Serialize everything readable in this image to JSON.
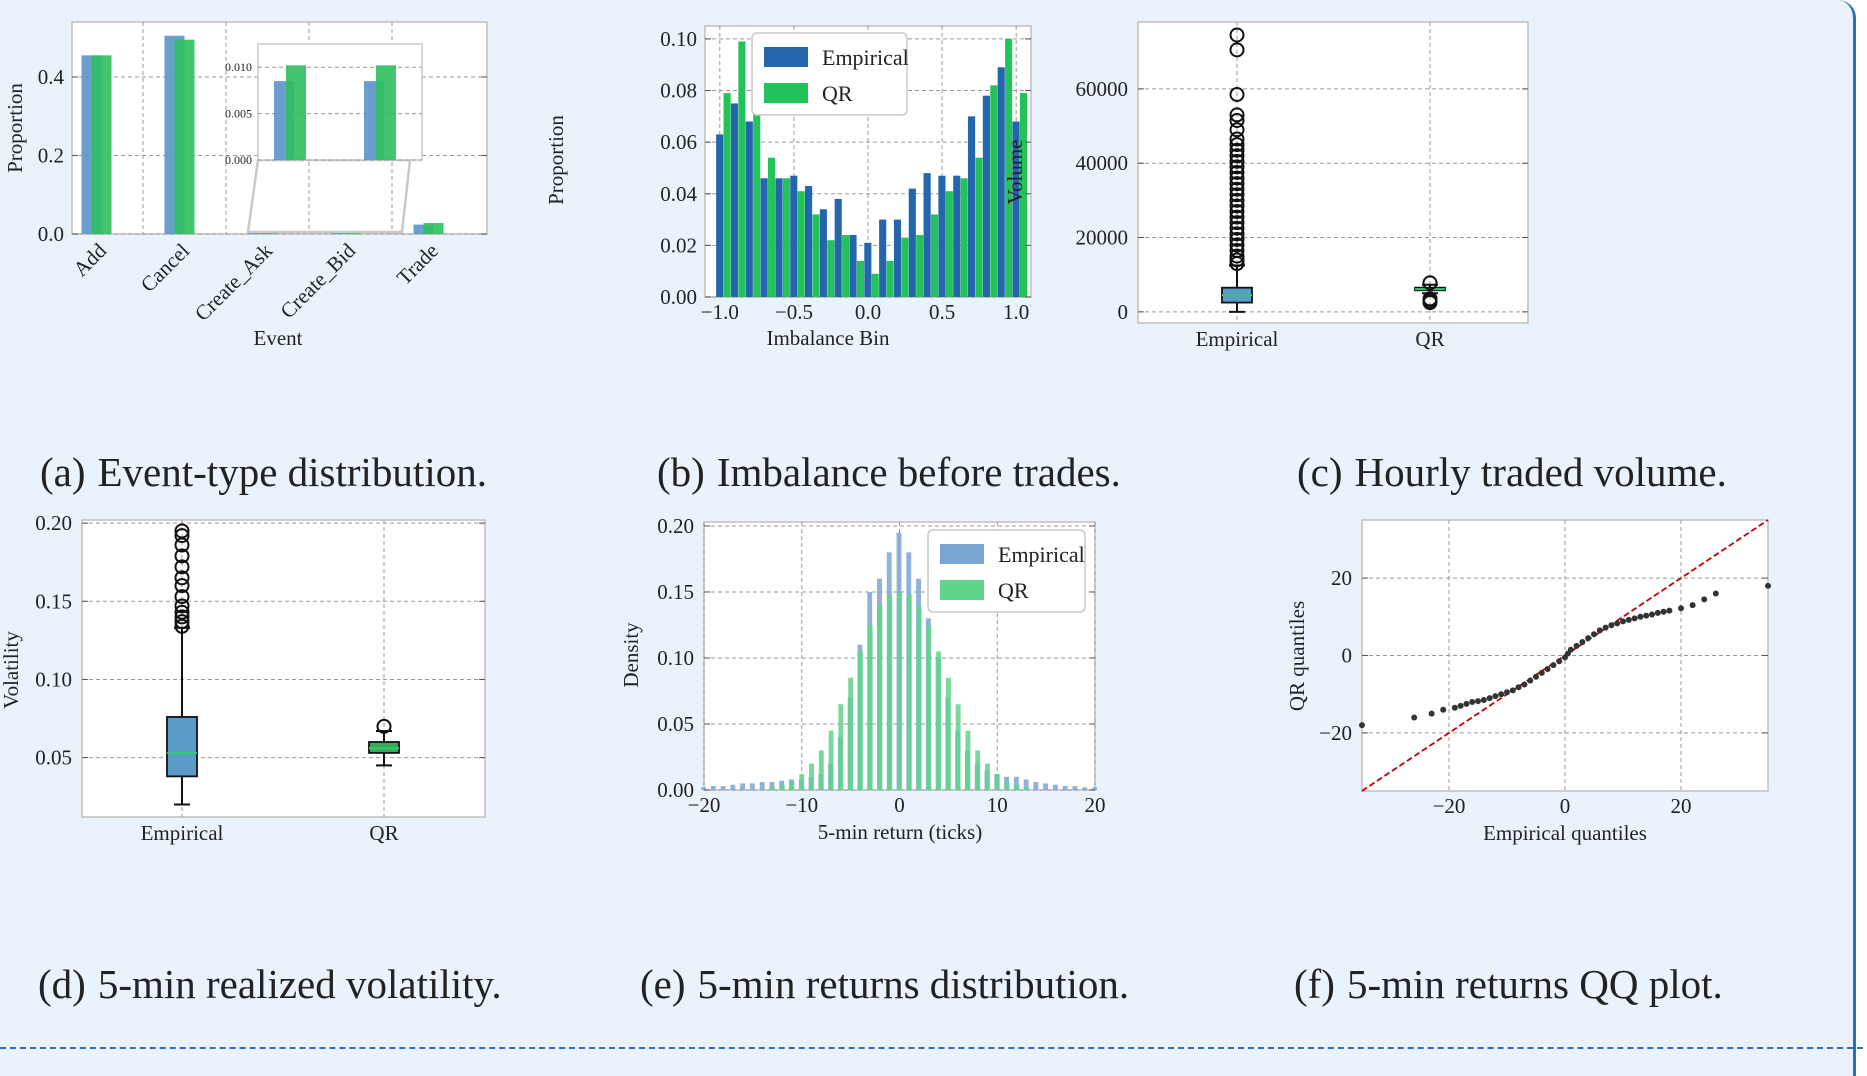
{
  "chart_data": [
    {
      "id": "a",
      "type": "bar",
      "caption_letter": "(a)",
      "caption": "Event-type distribution.",
      "categories": [
        "Add",
        "Cancel",
        "Create_Ask",
        "Create_Bid",
        "Trade"
      ],
      "series": [
        {
          "name": "Empirical",
          "values": [
            0.455,
            0.505,
            0.004,
            0.004,
            0.024
          ],
          "color": "#5b93c8"
        },
        {
          "name": "QR",
          "values": [
            0.455,
            0.495,
            0.005,
            0.005,
            0.028
          ],
          "color": "#2fbf5f"
        }
      ],
      "xlabel": "Event",
      "ylabel": "Proportion",
      "ylim": [
        0,
        0.54
      ],
      "yticks": [
        0.0,
        0.2,
        0.4
      ],
      "ytick_labels": [
        "0.0",
        "0.2",
        "0.4"
      ],
      "grid": true,
      "inset": {
        "categories": [
          "Create_Ask",
          "Create_Bid"
        ],
        "series": [
          {
            "name": "Empirical",
            "values": [
              0.0085,
              0.0085
            ]
          },
          {
            "name": "QR",
            "values": [
              0.0102,
              0.0102
            ]
          }
        ],
        "ylim": [
          0,
          0.0125
        ],
        "yticks": [
          0.0,
          0.005,
          0.01
        ],
        "ytick_labels": [
          "0.000",
          "0.005",
          "0.010"
        ]
      }
    },
    {
      "id": "b",
      "type": "bar",
      "caption_letter": "(b)",
      "caption": "Imbalance before trades.",
      "xlabel": "Imbalance Bin",
      "ylabel": "Proportion",
      "xlim": [
        -1.1,
        1.1
      ],
      "ylim": [
        0,
        0.105
      ],
      "xticks": [
        -1.0,
        -0.5,
        0.0,
        0.5,
        1.0
      ],
      "xtick_labels": [
        "−1.0",
        "−0.5",
        "0.0",
        "0.5",
        "1.0"
      ],
      "yticks": [
        0.0,
        0.02,
        0.04,
        0.06,
        0.08,
        0.1
      ],
      "ytick_labels": [
        "0.00",
        "0.02",
        "0.04",
        "0.06",
        "0.08",
        "0.10"
      ],
      "legend": "upper-center",
      "grid": true,
      "bin_centers": [
        -0.975,
        -0.875,
        -0.775,
        -0.675,
        -0.575,
        -0.475,
        -0.375,
        -0.275,
        -0.175,
        -0.075,
        0.025,
        0.125,
        0.225,
        0.325,
        0.425,
        0.525,
        0.625,
        0.725,
        0.825,
        0.925,
        1.025
      ],
      "series": [
        {
          "name": "Empirical",
          "color": "#2466ad",
          "values": [
            0.063,
            0.075,
            0.068,
            0.046,
            0.046,
            0.047,
            0.043,
            0.034,
            0.038,
            0.024,
            0.021,
            0.03,
            0.03,
            0.042,
            0.048,
            0.047,
            0.047,
            0.07,
            0.078,
            0.089,
            0.068
          ]
        },
        {
          "name": "QR",
          "color": "#24c25a",
          "values": [
            0.079,
            0.099,
            0.082,
            0.054,
            0.046,
            0.041,
            0.032,
            0.022,
            0.024,
            0.014,
            0.009,
            0.014,
            0.023,
            0.024,
            0.032,
            0.041,
            0.046,
            0.054,
            0.082,
            0.1,
            0.079
          ]
        }
      ]
    },
    {
      "id": "c",
      "type": "boxplot",
      "caption_letter": "(c)",
      "caption": "Hourly traded volume.",
      "categories": [
        "Empirical",
        "QR"
      ],
      "ylabel": "Volume",
      "ylim": [
        -3000,
        78000
      ],
      "yticks": [
        0,
        20000,
        40000,
        60000
      ],
      "ytick_labels": [
        "0",
        "20000",
        "40000",
        "60000"
      ],
      "grid": true,
      "boxes": [
        {
          "name": "Empirical",
          "whisker_low": 0,
          "q1": 2500,
          "median": 4500,
          "q3": 6500,
          "whisker_high": 12500,
          "color": "#5b9bc8",
          "outliers": [
            13000,
            14000,
            15000,
            16500,
            18000,
            19500,
            21000,
            22500,
            24000,
            25500,
            27000,
            28500,
            30000,
            31500,
            33000,
            34500,
            36000,
            37500,
            39000,
            40500,
            42000,
            43500,
            45000,
            46500,
            49000,
            51500,
            53000,
            58500,
            70500,
            74500
          ]
        },
        {
          "name": "QR",
          "whisker_low": 5000,
          "q1": 5800,
          "median": 6100,
          "q3": 6500,
          "whisker_high": 7300,
          "color": "#3aa65a",
          "outliers": [
            2500,
            3000,
            3500,
            7800
          ]
        }
      ]
    },
    {
      "id": "d",
      "type": "boxplot",
      "caption_letter": "(d)",
      "caption": "5-min realized volatility.",
      "categories": [
        "Empirical",
        "QR"
      ],
      "ylabel": "Volatility",
      "ylim": [
        0.012,
        0.202
      ],
      "yticks": [
        0.05,
        0.1,
        0.15,
        0.2
      ],
      "ytick_labels": [
        "0.05",
        "0.10",
        "0.15",
        "0.20"
      ],
      "grid": true,
      "boxes": [
        {
          "name": "Empirical",
          "whisker_low": 0.02,
          "q1": 0.038,
          "median": 0.053,
          "q3": 0.076,
          "whisker_high": 0.133,
          "color": "#5b9bc8",
          "outliers": [
            0.134,
            0.137,
            0.14,
            0.143,
            0.147,
            0.153,
            0.16,
            0.165,
            0.172,
            0.179,
            0.186,
            0.192,
            0.195
          ]
        },
        {
          "name": "QR",
          "whisker_low": 0.045,
          "q1": 0.053,
          "median": 0.056,
          "q3": 0.06,
          "whisker_high": 0.067,
          "color": "#3aa65a",
          "outliers": [
            0.07
          ]
        }
      ]
    },
    {
      "id": "e",
      "type": "bar",
      "caption_letter": "(e)",
      "caption": "5-min returns distribution.",
      "xlabel": "5-min return (ticks)",
      "ylabel": "Density",
      "xlim": [
        -20,
        20
      ],
      "ylim": [
        0,
        0.203
      ],
      "xticks": [
        -20,
        -10,
        0,
        10,
        20
      ],
      "xtick_labels": [
        "−20",
        "−10",
        "0",
        "10",
        "20"
      ],
      "yticks": [
        0.0,
        0.05,
        0.1,
        0.15,
        0.2
      ],
      "ytick_labels": [
        "0.00",
        "0.05",
        "0.10",
        "0.15",
        "0.20"
      ],
      "legend": "top-right",
      "grid": true,
      "x": [
        -20,
        -19,
        -18,
        -17,
        -16,
        -15,
        -14,
        -13,
        -12,
        -11,
        -10,
        -9,
        -8,
        -7,
        -6,
        -5,
        -4,
        -3,
        -2,
        -1,
        0,
        1,
        2,
        3,
        4,
        5,
        6,
        7,
        8,
        9,
        10,
        11,
        12,
        13,
        14,
        15,
        16,
        17,
        18,
        19,
        20
      ],
      "series": [
        {
          "name": "Empirical",
          "color": "#7aa5d2",
          "values": [
            0.002,
            0.003,
            0.003,
            0.004,
            0.005,
            0.005,
            0.006,
            0.006,
            0.007,
            0.008,
            0.008,
            0.01,
            0.012,
            0.02,
            0.04,
            0.07,
            0.11,
            0.15,
            0.16,
            0.18,
            0.195,
            0.18,
            0.16,
            0.13,
            0.1,
            0.07,
            0.045,
            0.03,
            0.02,
            0.015,
            0.012,
            0.01,
            0.01,
            0.008,
            0.006,
            0.005,
            0.004,
            0.003,
            0.003,
            0.002,
            0.002
          ]
        },
        {
          "name": "QR",
          "color": "#5fd48a",
          "values": [
            0.0,
            0.0,
            0.0,
            0.0,
            0.0,
            0.0,
            0.0,
            0.002,
            0.004,
            0.006,
            0.012,
            0.02,
            0.03,
            0.045,
            0.065,
            0.085,
            0.105,
            0.125,
            0.14,
            0.148,
            0.15,
            0.148,
            0.14,
            0.125,
            0.105,
            0.085,
            0.065,
            0.045,
            0.03,
            0.02,
            0.012,
            0.006,
            0.004,
            0.002,
            0.0,
            0.0,
            0.0,
            0.0,
            0.0,
            0.0,
            0.0
          ]
        }
      ]
    },
    {
      "id": "f",
      "type": "scatter",
      "caption_letter": "(f)",
      "caption": "5-min returns QQ plot.",
      "xlabel": "Empirical quantiles",
      "ylabel": "QR quantiles",
      "xlim": [
        -35,
        35
      ],
      "ylim": [
        -35,
        35
      ],
      "xticks": [
        -20,
        0,
        20
      ],
      "xtick_labels": [
        "−20",
        "0",
        "20"
      ],
      "yticks": [
        -20,
        0,
        20
      ],
      "ytick_labels": [
        "−20",
        "0",
        "20"
      ],
      "grid": true,
      "reference_line": "y = x",
      "points": [
        [
          -35,
          -18
        ],
        [
          -26,
          -16
        ],
        [
          -23,
          -15
        ],
        [
          -21,
          -14
        ],
        [
          -19,
          -13.5
        ],
        [
          -18,
          -13
        ],
        [
          -17,
          -12.5
        ],
        [
          -16,
          -12
        ],
        [
          -15,
          -11.8
        ],
        [
          -14,
          -11.5
        ],
        [
          -13,
          -11
        ],
        [
          -12,
          -10.5
        ],
        [
          -11,
          -10
        ],
        [
          -10,
          -9.5
        ],
        [
          -9,
          -9
        ],
        [
          -8,
          -8.2
        ],
        [
          -7,
          -7.5
        ],
        [
          -6,
          -6.5
        ],
        [
          -5,
          -5.5
        ],
        [
          -4,
          -4.5
        ],
        [
          -3,
          -3.5
        ],
        [
          -2,
          -2.5
        ],
        [
          -1,
          -1.5
        ],
        [
          0,
          -0.5
        ],
        [
          0.5,
          0.5
        ],
        [
          1,
          1.5
        ],
        [
          2,
          2.5
        ],
        [
          3,
          3.5
        ],
        [
          4,
          4.5
        ],
        [
          5,
          5.5
        ],
        [
          6,
          6.5
        ],
        [
          7,
          7.2
        ],
        [
          8,
          7.8
        ],
        [
          9,
          8.3
        ],
        [
          10,
          8.8
        ],
        [
          11,
          9.2
        ],
        [
          12,
          9.6
        ],
        [
          13,
          10
        ],
        [
          14,
          10.3
        ],
        [
          15,
          10.6
        ],
        [
          16,
          11
        ],
        [
          17,
          11.3
        ],
        [
          18,
          11.6
        ],
        [
          20,
          12.2
        ],
        [
          22,
          13
        ],
        [
          24,
          14.5
        ],
        [
          26,
          16
        ],
        [
          35,
          18
        ]
      ],
      "point_color": "#333333",
      "line_color": "#c00000"
    }
  ]
}
